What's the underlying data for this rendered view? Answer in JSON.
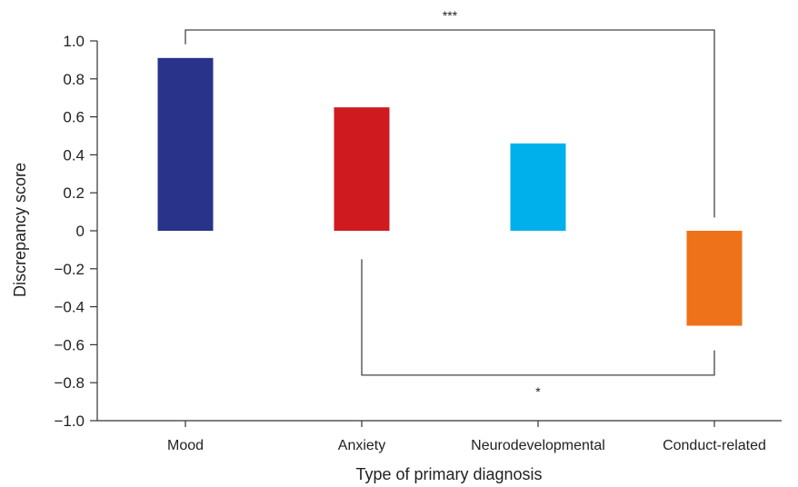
{
  "chart_data": {
    "type": "bar",
    "title": "",
    "xlabel": "Type of primary diagnosis",
    "ylabel": "Discrepancy score",
    "ylim": [
      -1.0,
      1.0
    ],
    "yticks": [
      1.0,
      0.8,
      0.6,
      0.4,
      0.2,
      0,
      -0.2,
      -0.4,
      -0.6,
      -0.8,
      -1.0
    ],
    "ytick_labels": [
      "1.0",
      "0.8",
      "0.6",
      "0.4",
      "0.2",
      "0",
      "−0.2",
      "−0.4",
      "−0.6",
      "−0.8",
      "−1.0"
    ],
    "categories": [
      "Mood",
      "Anxiety",
      "Neurodevelopmental",
      "Conduct-related"
    ],
    "values": [
      0.91,
      0.65,
      0.46,
      -0.5
    ],
    "colors": [
      "#283389",
      "#CF1A20",
      "#00B0EA",
      "#EE7219"
    ],
    "grid": false,
    "legend": "none",
    "annotations": [
      {
        "from": "Mood",
        "to": "Conduct-related",
        "label": "***"
      },
      {
        "from": "Anxiety",
        "to": "Conduct-related",
        "label": "*"
      }
    ]
  }
}
